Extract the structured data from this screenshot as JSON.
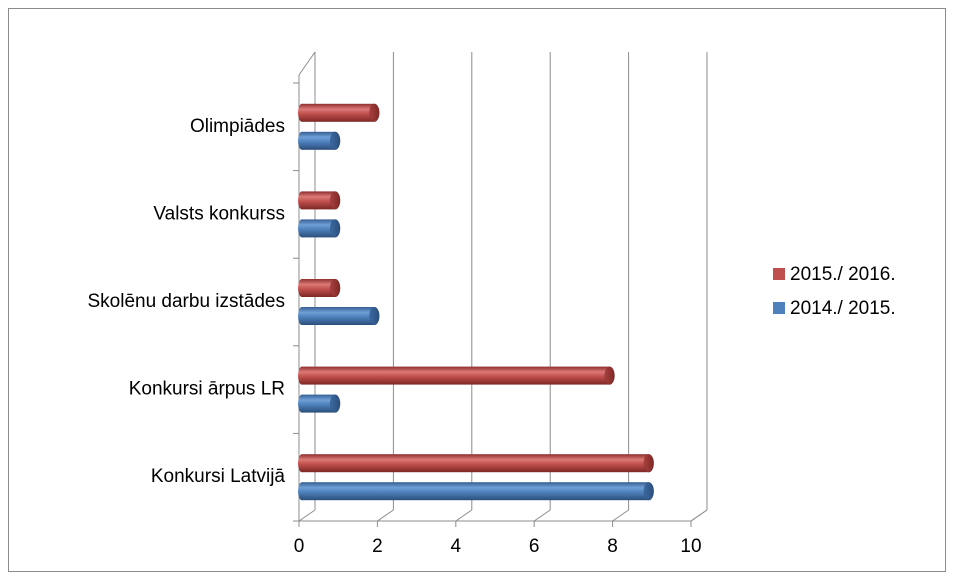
{
  "chart_data": {
    "type": "bar",
    "orientation": "horizontal",
    "style": "3d-cylinder",
    "categories": [
      "Konkursi Latvijā",
      "Konkursi ārpus LR",
      "Skolēnu darbu izstādes",
      "Valsts konkurss",
      "Olimpiādes"
    ],
    "series": [
      {
        "name": "2014./ 2015.",
        "color": "#4f81bd",
        "values": [
          9,
          1,
          2,
          1,
          1
        ]
      },
      {
        "name": "2015./ 2016.",
        "color": "#c0504d",
        "values": [
          9,
          8,
          1,
          1,
          2
        ]
      }
    ],
    "xlim": [
      0,
      10
    ],
    "xticks": [
      "0",
      "2",
      "4",
      "6",
      "8",
      "10"
    ],
    "grid": true,
    "legend_position": "right",
    "title": "",
    "xlabel": "",
    "ylabel": ""
  }
}
